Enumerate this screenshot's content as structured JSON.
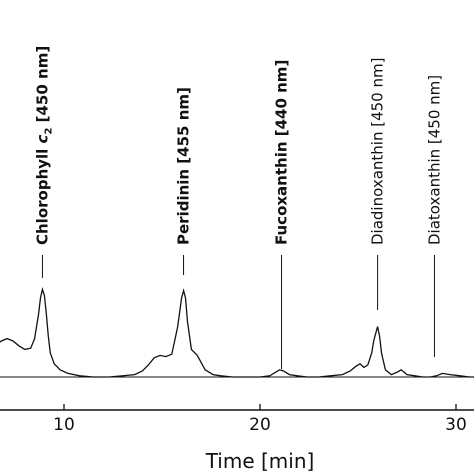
{
  "chart_data": {
    "type": "line",
    "xlabel": "Time [min]",
    "ylabel": "",
    "title": "",
    "xlim": [
      5,
      31
    ],
    "grid": false,
    "ticks": [
      10,
      20,
      30
    ],
    "tick_labels": [
      "10",
      "20",
      "30"
    ],
    "series": [
      {
        "x": [
          5.0,
          5.3,
          5.6,
          5.9,
          6.2,
          6.5,
          6.8,
          7.1,
          7.4,
          7.7,
          8.0,
          8.3,
          8.5,
          8.7,
          8.8,
          8.9,
          9.0,
          9.1,
          9.2,
          9.3,
          9.5,
          9.8,
          10.2,
          10.8,
          11.5,
          12.3,
          13.0,
          13.6,
          14.0,
          14.3,
          14.6,
          14.9,
          15.2,
          15.5,
          15.8,
          16.0,
          16.1,
          16.2,
          16.3,
          16.5,
          16.8,
          17.2,
          17.6,
          18.0,
          18.6,
          19.3,
          20.0,
          20.5,
          20.8,
          21.0,
          21.2,
          21.5,
          21.9,
          22.4,
          23.0,
          23.6,
          24.2,
          24.6,
          24.9,
          25.1,
          25.3,
          25.5,
          25.7,
          25.8,
          25.9,
          26.0,
          26.1,
          26.2,
          26.4,
          26.7,
          27.0,
          27.2,
          27.5,
          27.9,
          28.3,
          28.7,
          29.0,
          29.3,
          29.7,
          30.2,
          30.7,
          31.0
        ],
        "y": [
          0.26,
          0.24,
          0.22,
          0.21,
          0.22,
          0.26,
          0.3,
          0.32,
          0.3,
          0.26,
          0.23,
          0.24,
          0.32,
          0.52,
          0.66,
          0.73,
          0.68,
          0.52,
          0.34,
          0.2,
          0.11,
          0.06,
          0.03,
          0.01,
          0.0,
          0.0,
          0.01,
          0.02,
          0.05,
          0.1,
          0.16,
          0.18,
          0.17,
          0.19,
          0.42,
          0.66,
          0.72,
          0.66,
          0.46,
          0.23,
          0.18,
          0.06,
          0.02,
          0.01,
          0.0,
          0.0,
          0.0,
          0.01,
          0.04,
          0.06,
          0.05,
          0.02,
          0.01,
          0.0,
          0.0,
          0.01,
          0.02,
          0.05,
          0.09,
          0.11,
          0.08,
          0.1,
          0.2,
          0.3,
          0.36,
          0.42,
          0.34,
          0.2,
          0.06,
          0.02,
          0.04,
          0.06,
          0.02,
          0.01,
          0.0,
          0.0,
          0.01,
          0.03,
          0.02,
          0.01,
          0.0,
          0.0
        ]
      }
    ],
    "annotations": [
      {
        "text_main": "Chlorophyll ",
        "text_italic": "c",
        "text_sub": "2",
        "text_suffix": " [450 nm]",
        "x": 8.9,
        "bold": true
      },
      {
        "text_main": "Peridinin [455 nm]",
        "x": 16.1,
        "bold": true
      },
      {
        "text_main": "Fucoxanthin [440 nm]",
        "x": 21.1,
        "bold": true
      },
      {
        "text_main": "Diadinoxanthin [450 nm]",
        "x": 26.0,
        "bold": false
      },
      {
        "text_main": "Diatoxanthin [450 nm]",
        "x": 28.9,
        "bold": false
      }
    ]
  }
}
